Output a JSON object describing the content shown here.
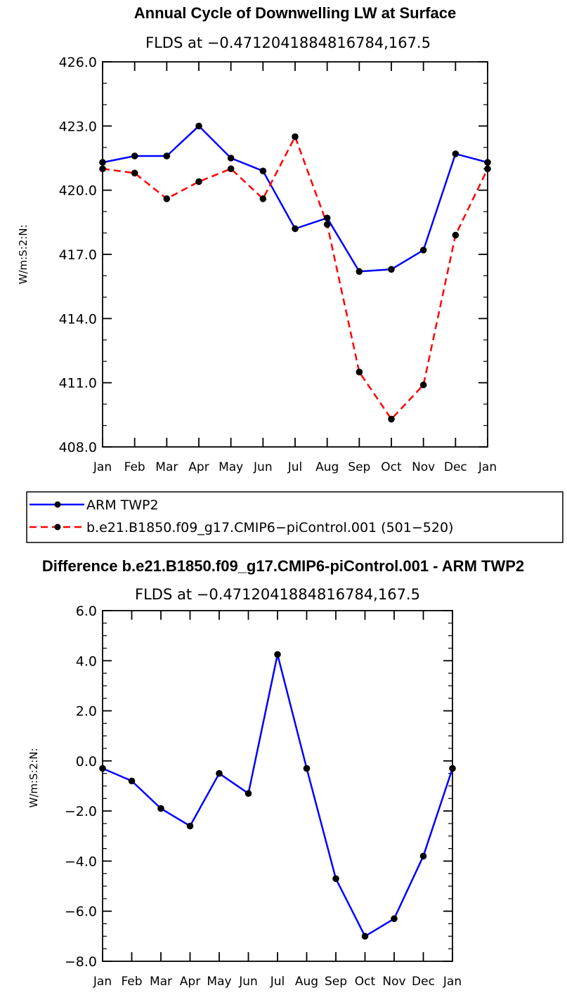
{
  "colors": {
    "obs": "#0000ff",
    "model": "#ff0000",
    "marker": "#000000"
  },
  "chart_data": [
    {
      "type": "line",
      "title": "Annual Cycle of Downwelling LW at Surface",
      "subtitle": "FLDS at −0.4712041884816784,167.5",
      "xlabel": "",
      "ylabel": "W/m:S:2:N:",
      "categories": [
        "Jan",
        "Feb",
        "Mar",
        "Apr",
        "May",
        "Jun",
        "Jul",
        "Aug",
        "Sep",
        "Oct",
        "Nov",
        "Dec",
        "Jan"
      ],
      "ylim": [
        408,
        426
      ],
      "yticks": [
        408,
        411,
        414,
        417,
        420,
        423,
        426
      ],
      "ytick_labels": [
        "408.0",
        "411.0",
        "414.0",
        "417.0",
        "420.0",
        "423.0",
        "426.0"
      ],
      "yminor_step": 1,
      "series": [
        {
          "name": "ARM TWP2",
          "style": "solid",
          "color": "#0000ff",
          "values": [
            421.3,
            421.6,
            421.6,
            423.0,
            421.5,
            420.9,
            418.2,
            418.7,
            416.2,
            416.3,
            417.2,
            421.7,
            421.3
          ]
        },
        {
          "name": "b.e21.B1850.f09_g17.CMIP6−piControl.001 (501−520)",
          "style": "dashed",
          "color": "#ff0000",
          "values": [
            421.0,
            420.8,
            419.6,
            420.4,
            421.0,
            419.6,
            422.5,
            418.4,
            411.5,
            409.3,
            410.9,
            417.9,
            421.0
          ]
        }
      ],
      "legend": "below"
    },
    {
      "type": "line",
      "title": "Difference b.e21.B1850.f09_g17.CMIP6-piControl.001 - ARM TWP2",
      "subtitle": "FLDS at −0.4712041884816784,167.5",
      "xlabel": "",
      "ylabel": "W/m:S:2:N:",
      "categories": [
        "Jan",
        "Feb",
        "Mar",
        "Apr",
        "May",
        "Jun",
        "Jul",
        "Aug",
        "Sep",
        "Oct",
        "Nov",
        "Dec",
        "Jan"
      ],
      "ylim": [
        -8,
        6
      ],
      "yticks": [
        -8,
        -6,
        -4,
        -2,
        0,
        2,
        4,
        6
      ],
      "ytick_labels": [
        "−8.0",
        "−6.0",
        "−4.0",
        "−2.0",
        "0.0",
        "2.0",
        "4.0",
        "6.0"
      ],
      "yminor_step": 0.5,
      "series": [
        {
          "name": "Difference",
          "style": "solid",
          "color": "#0000ff",
          "values": [
            -0.3,
            -0.8,
            -1.9,
            -2.6,
            -0.5,
            -1.3,
            4.25,
            -0.3,
            -4.7,
            -7.0,
            -6.3,
            -3.8,
            -0.3
          ]
        }
      ]
    }
  ]
}
